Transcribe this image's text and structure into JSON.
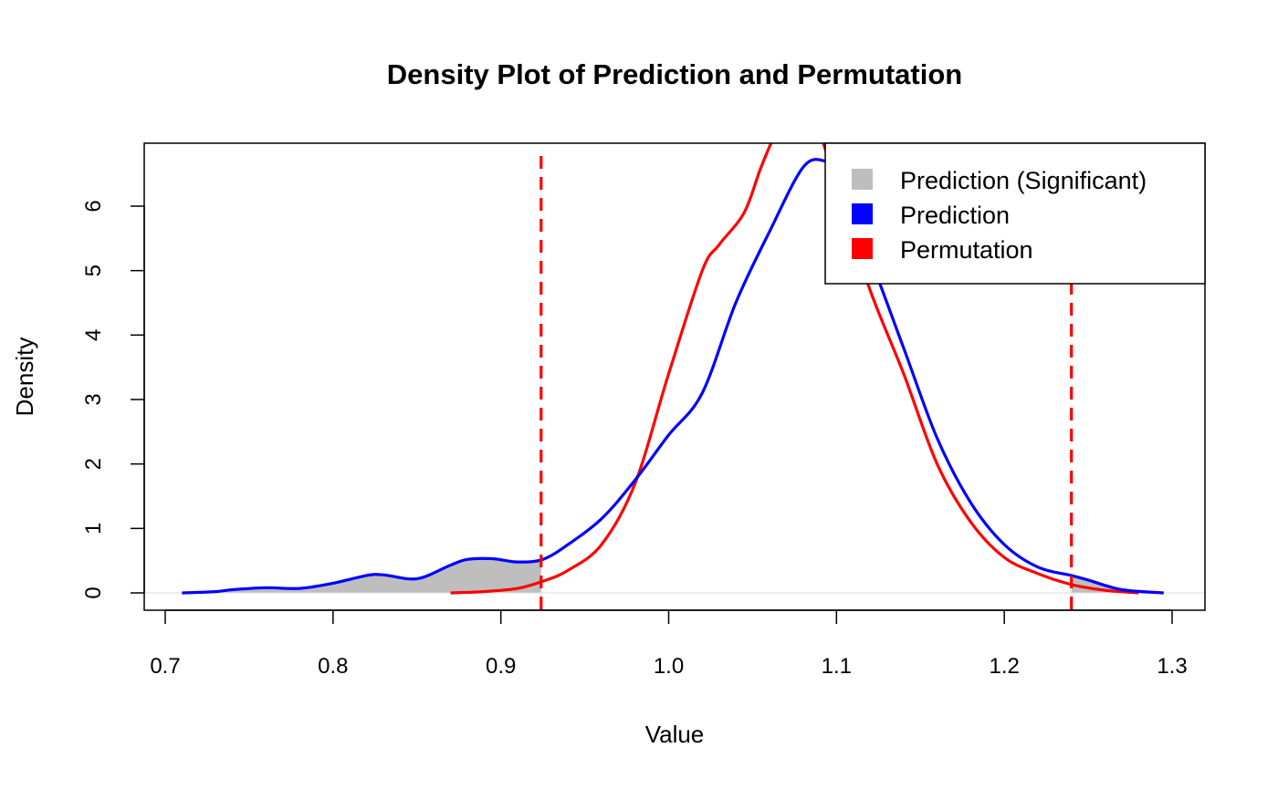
{
  "chart_data": {
    "type": "line",
    "title": "Density Plot of Prediction and Permutation",
    "xlabel": "Value",
    "ylabel": "Density",
    "xlim": [
      0.69,
      1.32
    ],
    "ylim": [
      -0.1,
      6.95
    ],
    "x_ticks": [
      0.7,
      0.8,
      0.9,
      1.0,
      1.1,
      1.2,
      1.3
    ],
    "x_tick_labels": [
      "0.7",
      "0.8",
      "0.9",
      "1.0",
      "1.1",
      "1.2",
      "1.3"
    ],
    "y_ticks": [
      0,
      1,
      2,
      3,
      4,
      5,
      6
    ],
    "y_tick_labels": [
      "0",
      "1",
      "2",
      "3",
      "4",
      "5",
      "6"
    ],
    "grid": false,
    "legend_position": "top-right",
    "legend": [
      {
        "label": "Prediction (Significant)",
        "color": "#bebebe"
      },
      {
        "label": "Prediction",
        "color": "#0000ff"
      },
      {
        "label": "Permutation",
        "color": "#ff0000"
      }
    ],
    "thresholds": [
      0.924,
      1.24
    ],
    "threshold_color": "#ff0000",
    "series": [
      {
        "name": "Prediction",
        "color": "#0000ff",
        "x": [
          0.71,
          0.73,
          0.74,
          0.76,
          0.78,
          0.8,
          0.82,
          0.83,
          0.85,
          0.87,
          0.88,
          0.895,
          0.91,
          0.925,
          0.94,
          0.96,
          0.98,
          1.0,
          1.02,
          1.04,
          1.06,
          1.08,
          1.093,
          1.1,
          1.12,
          1.14,
          1.16,
          1.18,
          1.2,
          1.22,
          1.24,
          1.25,
          1.27,
          1.295
        ],
        "y": [
          0.0,
          0.02,
          0.05,
          0.08,
          0.07,
          0.15,
          0.27,
          0.28,
          0.22,
          0.43,
          0.52,
          0.53,
          0.48,
          0.52,
          0.75,
          1.15,
          1.75,
          2.45,
          3.1,
          4.5,
          5.6,
          6.6,
          6.7,
          6.5,
          5.2,
          3.8,
          2.4,
          1.4,
          0.75,
          0.4,
          0.27,
          0.2,
          0.05,
          0.0
        ]
      },
      {
        "name": "Permutation",
        "color": "#ff0000",
        "x": [
          0.87,
          0.89,
          0.91,
          0.925,
          0.94,
          0.96,
          0.98,
          1.0,
          1.02,
          1.03,
          1.045,
          1.055,
          1.065,
          1.075,
          1.09,
          1.1,
          1.12,
          1.14,
          1.16,
          1.18,
          1.2,
          1.22,
          1.24,
          1.26,
          1.28
        ],
        "y": [
          0.0,
          0.02,
          0.07,
          0.18,
          0.35,
          0.75,
          1.7,
          3.4,
          5.0,
          5.4,
          5.9,
          6.6,
          7.2,
          7.6,
          7.1,
          6.3,
          4.7,
          3.4,
          2.0,
          1.1,
          0.55,
          0.3,
          0.13,
          0.04,
          0.0
        ]
      }
    ]
  }
}
